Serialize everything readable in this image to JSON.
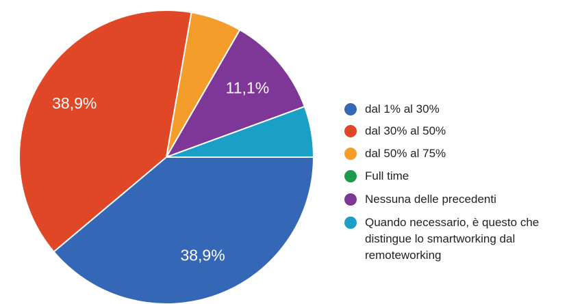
{
  "chart_data": {
    "type": "pie",
    "categories": [
      "dal 1% al 30%",
      "dal 30% al 50%",
      "dal 50% al 75%",
      "Full time",
      "Nessuna delle precedenti",
      "Quando necessario, è questo che distingue lo smartworking dal remoteworking"
    ],
    "values": [
      38.9,
      38.9,
      5.6,
      0,
      11.1,
      5.6
    ],
    "value_labels": [
      "38,9%",
      "38,9%",
      null,
      null,
      "11,1%",
      null
    ],
    "colors": [
      "#3467b5",
      "#e04727",
      "#f59d2b",
      "#1e9a4c",
      "#7e3796",
      "#1a9fc7"
    ],
    "legend": "right"
  }
}
